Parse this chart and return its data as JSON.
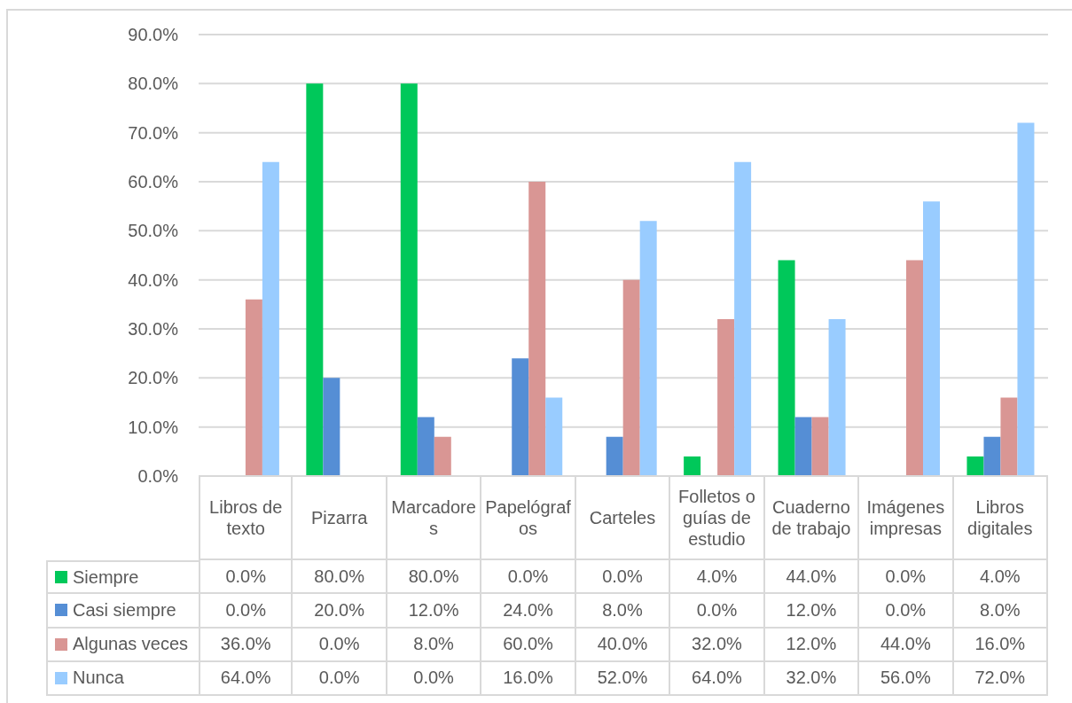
{
  "chart_data": {
    "type": "bar",
    "categories": [
      "Libros de texto",
      "Pizarra",
      "Marcadores",
      "Papelógrafos",
      "Carteles",
      "Folletos o guías de estudio",
      "Cuaderno de trabajo",
      "Imágenes impresas",
      "Libros digitales"
    ],
    "series": [
      {
        "name": "Siempre",
        "color": "#00c85a",
        "values": [
          0,
          80,
          80,
          0,
          0,
          4,
          44,
          0,
          4
        ],
        "value_labels": [
          "0.0%",
          "80.0%",
          "80.0%",
          "0.0%",
          "0.0%",
          "4.0%",
          "44.0%",
          "0.0%",
          "4.0%"
        ]
      },
      {
        "name": "Casi siempre",
        "color": "#558ed5",
        "values": [
          0,
          20,
          12,
          24,
          8,
          0,
          12,
          0,
          8
        ],
        "value_labels": [
          "0.0%",
          "20.0%",
          "12.0%",
          "24.0%",
          "8.0%",
          "0.0%",
          "12.0%",
          "0.0%",
          "8.0%"
        ]
      },
      {
        "name": "Algunas veces",
        "color": "#d99694",
        "values": [
          36,
          0,
          8,
          60,
          40,
          32,
          12,
          44,
          16
        ],
        "value_labels": [
          "36.0%",
          "0.0%",
          "8.0%",
          "60.0%",
          "40.0%",
          "32.0%",
          "12.0%",
          "44.0%",
          "16.0%"
        ]
      },
      {
        "name": "Nunca",
        "color": "#99ccff",
        "values": [
          64,
          0,
          0,
          16,
          52,
          64,
          32,
          56,
          72
        ],
        "value_labels": [
          "64.0%",
          "0.0%",
          "0.0%",
          "16.0%",
          "52.0%",
          "64.0%",
          "32.0%",
          "56.0%",
          "72.0%"
        ]
      }
    ],
    "ylim": [
      0,
      90
    ],
    "yticks": [
      {
        "value": 0,
        "label": "0.0%"
      },
      {
        "value": 10,
        "label": "10.0%"
      },
      {
        "value": 20,
        "label": "20.0%"
      },
      {
        "value": 30,
        "label": "30.0%"
      },
      {
        "value": 40,
        "label": "40.0%"
      },
      {
        "value": 50,
        "label": "50.0%"
      },
      {
        "value": 60,
        "label": "60.0%"
      },
      {
        "value": 70,
        "label": "70.0%"
      },
      {
        "value": 80,
        "label": "80.0%"
      },
      {
        "value": 90,
        "label": "90.0%"
      }
    ],
    "grid": "y",
    "legend": "bottom"
  }
}
